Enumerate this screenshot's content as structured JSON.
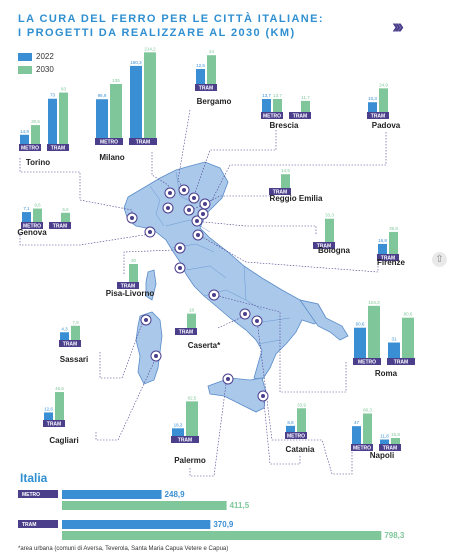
{
  "title_line1": "LA CURA DEL FERRO PER LE CITTÀ ITALIANE:",
  "title_line2": "I PROGETTI DA REALIZZARE AL 2030 (KM)",
  "footnote": "*area urbana (comuni di Aversa, Teverola, Santa Maria Capua Vetere e Capua)",
  "colors": {
    "y2022": "#3a8fd4",
    "y2030": "#7fc79a",
    "label_bg": "#4b3f8c",
    "map": "#a9c8ea",
    "map_stroke": "#5a8cc9",
    "title": "#2f8fd0",
    "leader": "#4b3f8c"
  },
  "icons": [
    "chevrons-right-icon",
    "arrow-up-icon"
  ],
  "chart_data": {
    "type": "bar",
    "title": "LA CURA DEL FERRO PER LE CITTÀ ITALIANE: I PROGETTI DA REALIZZARE AL 2030 (KM)",
    "series_names": [
      "2022",
      "2030"
    ],
    "cities": [
      {
        "name": "Torino",
        "groups": [
          {
            "mode": "METRO",
            "v2022": 14.9,
            "v2030": 30.5,
            "l2022": "14,9",
            "l2030": "30,5"
          },
          {
            "mode": "TRAM",
            "v2022": 73,
            "v2030": 83,
            "l2022": "73",
            "l2030": "83"
          }
        ]
      },
      {
        "name": "Milano",
        "groups": [
          {
            "mode": "METRO",
            "v2022": 96.9,
            "v2030": 135,
            "l2022": "96,9",
            "l2030": "135"
          },
          {
            "mode": "TRAM",
            "v2022": 180.3,
            "v2030": 214.2,
            "l2022": "180,3",
            "l2030": "214,2"
          }
        ]
      },
      {
        "name": "Bergamo",
        "groups": [
          {
            "mode": "TRAM",
            "v2022": 12.5,
            "v2030": 24,
            "l2022": "12,5",
            "l2030": "24"
          }
        ]
      },
      {
        "name": "Brescia",
        "groups": [
          {
            "mode": "METRO",
            "v2022": 13.7,
            "v2030": 13.7,
            "l2022": "13,7",
            "l2030": "13,7"
          },
          {
            "mode": "TRAM",
            "v2022": 0,
            "v2030": 11.7,
            "l2022": "",
            "l2030": "11,7"
          }
        ]
      },
      {
        "name": "Padova",
        "groups": [
          {
            "mode": "TRAM",
            "v2022": 10.3,
            "v2030": 24.9,
            "l2022": "10,3",
            "l2030": "24,9"
          }
        ]
      },
      {
        "name": "Reggio Emilia",
        "groups": [
          {
            "mode": "TRAM",
            "v2022": 0,
            "v2030": 14.5,
            "l2022": "",
            "l2030": "14,5"
          }
        ]
      },
      {
        "name": "Genova",
        "groups": [
          {
            "mode": "METRO",
            "v2022": 7.1,
            "v2030": 9.6,
            "l2022": "7,1",
            "l2030": "9,6"
          },
          {
            "mode": "TRAM",
            "v2022": 0,
            "v2030": 6.6,
            "l2022": "",
            "l2030": "6,6"
          }
        ]
      },
      {
        "name": "Bologna",
        "groups": [
          {
            "mode": "TRAM",
            "v2022": 0,
            "v2030": 33.3,
            "l2022": "",
            "l2030": "33,3"
          }
        ]
      },
      {
        "name": "Firenze",
        "groups": [
          {
            "mode": "TRAM",
            "v2022": 16.8,
            "v2030": 36.8,
            "l2022": "16,8",
            "l2030": "36,8"
          }
        ]
      },
      {
        "name": "Pisa-Livorno",
        "groups": [
          {
            "mode": "TRAM",
            "v2022": 0,
            "v2030": 30,
            "l2022": "",
            "l2030": "30"
          }
        ]
      },
      {
        "name": "Caserta*",
        "groups": [
          {
            "mode": "TRAM",
            "v2022": 0,
            "v2030": 18,
            "l2022": "",
            "l2030": "18"
          }
        ]
      },
      {
        "name": "Sassari",
        "groups": [
          {
            "mode": "TRAM",
            "v2022": 4.3,
            "v2030": 7.9,
            "l2022": "4,3",
            "l2030": "7,9"
          }
        ]
      },
      {
        "name": "Roma",
        "groups": [
          {
            "mode": "METRO",
            "v2022": 60.6,
            "v2030": 104.3,
            "l2022": "60,6",
            "l2030": "104,3"
          },
          {
            "mode": "TRAM",
            "v2022": 31,
            "v2030": 80.6,
            "l2022": "31",
            "l2030": "80,6"
          }
        ]
      },
      {
        "name": "Cagliari",
        "groups": [
          {
            "mode": "TRAM",
            "v2022": 12.6,
            "v2030": 46.6,
            "l2022": "12,6",
            "l2030": "46,6"
          }
        ]
      },
      {
        "name": "Palermo",
        "groups": [
          {
            "mode": "TRAM",
            "v2022": 18.3,
            "v2030": 82.5,
            "l2022": "18,3",
            "l2030": "82,5"
          }
        ]
      },
      {
        "name": "Catania",
        "groups": [
          {
            "mode": "METRO",
            "v2022": 8.8,
            "v2030": 33.9,
            "l2022": "8,8",
            "l2030": "33,9"
          }
        ]
      },
      {
        "name": "Napoli",
        "groups": [
          {
            "mode": "METRO",
            "v2022": 47,
            "v2030": 80.3,
            "l2022": "47",
            "l2030": "80,3"
          },
          {
            "mode": "TRAM",
            "v2022": 11.8,
            "v2030": 15.8,
            "l2022": "11,8",
            "l2030": "15,8"
          }
        ]
      }
    ],
    "italia": {
      "title": "Italia",
      "rows": [
        {
          "mode": "METRO",
          "v2022": 248.9,
          "v2030": 411.5,
          "l2022": "248,9",
          "l2030": "411,5"
        },
        {
          "mode": "TRAM",
          "v2022": 370.9,
          "v2030": 798.3,
          "l2022": "370,9",
          "l2030": "798,3"
        }
      ]
    }
  }
}
